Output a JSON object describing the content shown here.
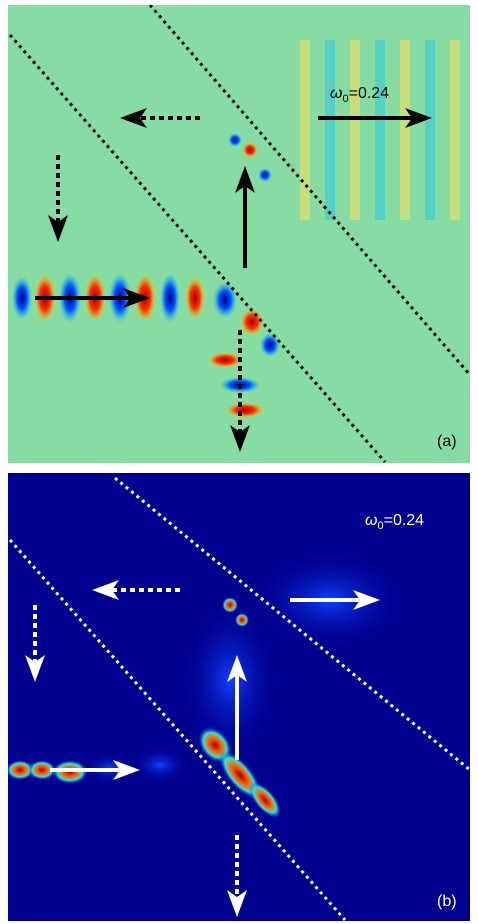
{
  "panels": [
    {
      "label": "(a)",
      "annotation": {
        "symbol": "ω",
        "subscript": "0",
        "text": "=0.24"
      }
    },
    {
      "label": "(b)",
      "annotation": {
        "symbol": "ω",
        "subscript": "0",
        "text": "=0.24"
      }
    }
  ]
}
